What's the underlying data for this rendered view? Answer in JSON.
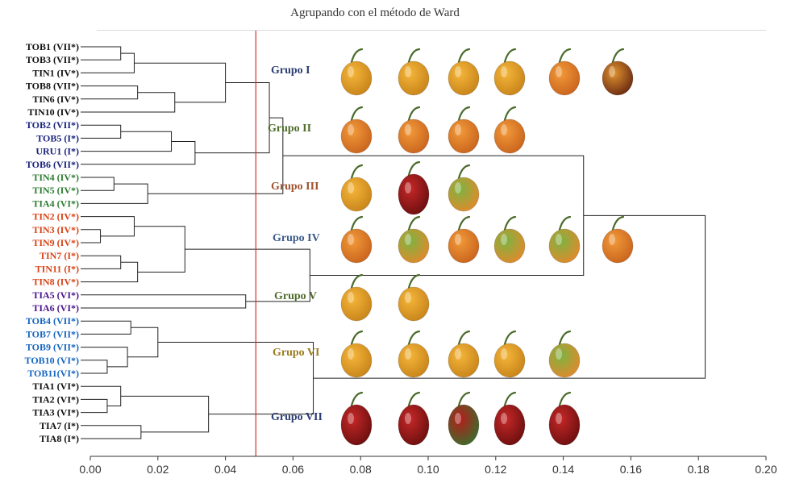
{
  "title": "Agrupando con el método de Ward",
  "leaves": [
    {
      "label": "TOB1 (VII*)",
      "color": "#111111"
    },
    {
      "label": "TOB3 (VII*)",
      "color": "#111111"
    },
    {
      "label": "TIN1 (IV*)",
      "color": "#111111"
    },
    {
      "label": "TOB8 (VII*)",
      "color": "#111111"
    },
    {
      "label": "TIN6 (IV*)",
      "color": "#111111"
    },
    {
      "label": "TIN10 (IV*)",
      "color": "#111111"
    },
    {
      "label": "TOB2 (VII*)",
      "color": "#1a237e"
    },
    {
      "label": "TOB5 (I*)",
      "color": "#1a237e"
    },
    {
      "label": "URU1 (I*)",
      "color": "#1a237e"
    },
    {
      "label": "TOB6 (VII*)",
      "color": "#1a237e"
    },
    {
      "label": "TIN4 (IV*)",
      "color": "#2e7d32"
    },
    {
      "label": "TIN5 (IV*)",
      "color": "#2e7d32"
    },
    {
      "label": "TIA4 (VI*)",
      "color": "#2e7d32"
    },
    {
      "label": "TIN2 (IV*)",
      "color": "#d84315"
    },
    {
      "label": "TIN3 (IV*)",
      "color": "#d84315"
    },
    {
      "label": "TIN9 (IV*)",
      "color": "#d84315"
    },
    {
      "label": "TIN7 (I*)",
      "color": "#d84315"
    },
    {
      "label": "TIN11 (I*)",
      "color": "#d84315"
    },
    {
      "label": "TIN8 (IV*)",
      "color": "#d84315"
    },
    {
      "label": "TIA5 (VI*)",
      "color": "#4a148c"
    },
    {
      "label": "TIA6 (VI*)",
      "color": "#4a148c"
    },
    {
      "label": "TOB4 (VII*)",
      "color": "#1565c0"
    },
    {
      "label": "TOB7 (VII*)",
      "color": "#1565c0"
    },
    {
      "label": "TOB9 (VII*)",
      "color": "#1565c0"
    },
    {
      "label": "TOB10 (VI*)",
      "color": "#1565c0"
    },
    {
      "label": "TOB11(VI*)",
      "color": "#1565c0"
    },
    {
      "label": "TIA1 (VI*)",
      "color": "#111111"
    },
    {
      "label": "TIA2 (VI*)",
      "color": "#111111"
    },
    {
      "label": "TIA3 (VI*)",
      "color": "#111111"
    },
    {
      "label": "TIA7 (I*)",
      "color": "#111111"
    },
    {
      "label": "TIA8 (I*)",
      "color": "#111111"
    }
  ],
  "groups": [
    {
      "label": "Grupo I",
      "color": "#2c3e74",
      "peppers": [
        "yellow",
        "yellow",
        "yellow",
        "yellow",
        "orange",
        "brown"
      ]
    },
    {
      "label": "Grupo II",
      "color": "#4e6b2a",
      "peppers": [
        "orange",
        "orange",
        "orange",
        "orange"
      ]
    },
    {
      "label": "Grupo III",
      "color": "#a0522d",
      "peppers": [
        "yellow",
        "red",
        "green"
      ]
    },
    {
      "label": "Grupo IV",
      "color": "#3b5b8a",
      "peppers": [
        "orange",
        "green",
        "orange",
        "green",
        "green",
        "orange"
      ]
    },
    {
      "label": "Grupo V",
      "color": "#4e6b2a",
      "peppers": [
        "yellow",
        "yellow"
      ]
    },
    {
      "label": "Grupo VI",
      "color": "#9a7b1c",
      "peppers": [
        "yellow",
        "yellow",
        "yellow",
        "yellow",
        "green"
      ]
    },
    {
      "label": "Grupo VII",
      "color": "#2c3e74",
      "peppers": [
        "red",
        "red",
        "redgreen",
        "red",
        "red"
      ]
    }
  ],
  "cut_height": 0.049,
  "xaxis": {
    "min": 0,
    "max": 0.2,
    "ticks": [
      "0.00",
      "0.02",
      "0.04",
      "0.06",
      "0.08",
      "0.10",
      "0.12",
      "0.14",
      "0.16",
      "0.18",
      "0.20"
    ]
  },
  "merges": [
    [
      0,
      1,
      0.009
    ],
    [
      -1,
      2,
      0.013
    ],
    [
      3,
      4,
      0.014
    ],
    [
      -3,
      5,
      0.025
    ],
    [
      -2,
      -4,
      0.04
    ],
    [
      6,
      7,
      0.009
    ],
    [
      -6,
      8,
      0.024
    ],
    [
      -7,
      9,
      0.031
    ],
    [
      -5,
      -8,
      0.053
    ],
    [
      10,
      11,
      0.007
    ],
    [
      -10,
      12,
      0.017
    ],
    [
      -9,
      -11,
      0.057
    ],
    [
      14,
      15,
      0.003
    ],
    [
      13,
      -13,
      0.013
    ],
    [
      16,
      17,
      0.009
    ],
    [
      -15,
      18,
      0.014
    ],
    [
      -14,
      -16,
      0.028
    ],
    [
      19,
      20,
      0.046
    ],
    [
      -17,
      -18,
      0.065
    ],
    [
      -12,
      -19,
      0.146
    ],
    [
      24,
      25,
      0.005
    ],
    [
      23,
      -21,
      0.011
    ],
    [
      21,
      22,
      0.012
    ],
    [
      -23,
      -22,
      0.02
    ],
    [
      27,
      28,
      0.005
    ],
    [
      26,
      -25,
      0.009
    ],
    [
      29,
      30,
      0.015
    ],
    [
      -26,
      -27,
      0.035
    ],
    [
      -24,
      -28,
      0.066
    ],
    [
      -20,
      -29,
      0.182
    ]
  ],
  "pepper_palette": {
    "yellow": [
      "#f5b63a",
      "#c8841a"
    ],
    "orange": [
      "#f29a3a",
      "#c9641d"
    ],
    "red": [
      "#c62828",
      "#6d0f0f"
    ],
    "green": [
      "#7cb342",
      "#e08a2c"
    ],
    "brown": [
      "#e0922f",
      "#6b2b12"
    ],
    "redgreen": [
      "#b71c1c",
      "#3e6b2a"
    ]
  }
}
